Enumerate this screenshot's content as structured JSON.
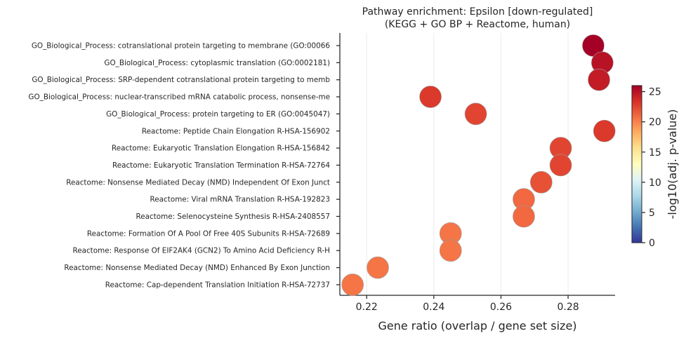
{
  "chart_data": {
    "type": "scatter",
    "title": "Pathway enrichment: Epsilon  [down-regulated]",
    "subtitle": "(KEGG + GO BP + Reactome, human)",
    "xlabel": "Gene ratio (overlap / gene set size)",
    "ylabel": "",
    "xlim": [
      0.212,
      0.294
    ],
    "xticks": [
      "0.22",
      "0.24",
      "0.26",
      "0.28"
    ],
    "grid": "vertical",
    "colorbar": {
      "label": "-log10(adj. p-value)",
      "range": [
        0,
        26
      ],
      "ticks": [
        "0",
        "5",
        "10",
        "15",
        "20",
        "25"
      ],
      "colormap": "RdYlBu_r"
    },
    "categories": [
      "GO_Biological_Process: cotranslational protein targeting to membrane (GO:00066",
      "GO_Biological_Process: cytoplasmic translation (GO:0002181)",
      "GO_Biological_Process: SRP-dependent cotranslational protein targeting to memb",
      "GO_Biological_Process: nuclear-transcribed mRNA catabolic process, nonsense-me",
      "GO_Biological_Process: protein targeting to ER (GO:0045047)",
      "Reactome: Peptide Chain Elongation R-HSA-156902",
      "Reactome: Eukaryotic Translation Elongation R-HSA-156842",
      "Reactome: Eukaryotic Translation Termination R-HSA-72764",
      "Reactome: Nonsense Mediated Decay (NMD) Independent Of Exon Junct",
      "Reactome: Viral mRNA Translation R-HSA-192823",
      "Reactome: Selenocysteine Synthesis R-HSA-2408557",
      "Reactome: Formation Of A Pool Of Free 40S Subunits R-HSA-72689",
      "Reactome: Response Of EIF2AK4 (GCN2) To Amino Acid Deficiency R-H",
      "Reactome: Nonsense Mediated Decay (NMD) Enhanced By Exon Junction",
      "Reactome: Cap-dependent Translation Initiation R-HSA-72737"
    ],
    "x": [
      0.2875,
      0.2902,
      0.2892,
      0.239,
      0.2525,
      0.2908,
      0.2778,
      0.2778,
      0.272,
      0.2668,
      0.2668,
      0.245,
      0.245,
      0.2233,
      0.2158
    ],
    "color_values": [
      26.0,
      25.0,
      24.5,
      23.0,
      22.5,
      23.0,
      22.5,
      22.5,
      22.0,
      21.0,
      21.0,
      20.5,
      20.5,
      20.5,
      20.5
    ],
    "size_values": [
      1,
      1,
      1,
      1,
      1,
      1,
      1,
      1,
      1,
      1,
      1,
      1,
      1,
      1,
      1
    ]
  }
}
